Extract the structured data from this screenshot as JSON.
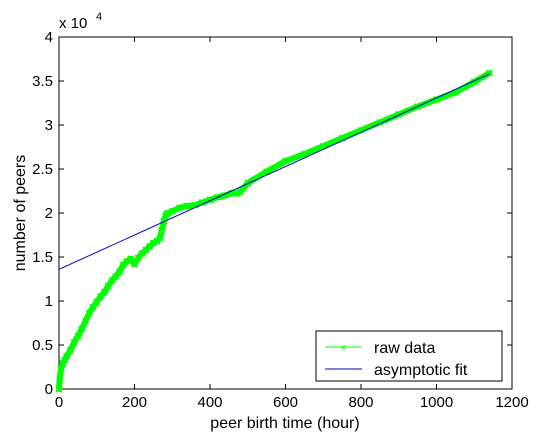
{
  "chart_data": {
    "type": "line",
    "xlabel": "peer birth time (hour)",
    "ylabel": "number of peers",
    "exponent_label": "x 10",
    "exponent_power": "4",
    "xlim": [
      0,
      1200
    ],
    "ylim": [
      0,
      40000
    ],
    "xticks": [
      0,
      200,
      400,
      600,
      800,
      1000,
      1200
    ],
    "yticks": [
      0,
      5000,
      10000,
      15000,
      20000,
      25000,
      30000,
      35000,
      40000
    ],
    "yticklabels": [
      "0",
      "0.5",
      "1",
      "1.5",
      "2",
      "2.5",
      "3",
      "3.5",
      "4"
    ],
    "grid": false,
    "legend_position": "bottom-right",
    "series": [
      {
        "name": "raw data",
        "color": "#00ff00",
        "marker": "x",
        "x": [
          0,
          2,
          5,
          10,
          15,
          20,
          30,
          40,
          50,
          60,
          70,
          80,
          90,
          100,
          110,
          120,
          130,
          140,
          150,
          160,
          170,
          180,
          190,
          200,
          210,
          220,
          230,
          240,
          250,
          260,
          268,
          272,
          278,
          282,
          286,
          290,
          300,
          320,
          340,
          360,
          380,
          400,
          420,
          440,
          460,
          470,
          480,
          500,
          550,
          600,
          650,
          700,
          750,
          800,
          850,
          900,
          950,
          1000,
          1050,
          1100,
          1140
        ],
        "y": [
          0,
          1200,
          2200,
          2900,
          3300,
          3700,
          4400,
          5300,
          6000,
          6800,
          7700,
          8600,
          9300,
          9900,
          10500,
          11000,
          11700,
          12300,
          12800,
          13300,
          14100,
          14500,
          14800,
          14200,
          14900,
          15400,
          15800,
          16200,
          16600,
          16800,
          17200,
          18000,
          19100,
          19700,
          19900,
          20000,
          20200,
          20600,
          20800,
          20900,
          21200,
          21500,
          21800,
          22000,
          22300,
          22200,
          22400,
          23400,
          24700,
          25900,
          26700,
          27600,
          28500,
          29400,
          30300,
          31200,
          32100,
          32900,
          33700,
          34900,
          35900
        ]
      },
      {
        "name": "asymptotic fit",
        "color": "#0000cc",
        "x": [
          0,
          1140
        ],
        "y": [
          13600,
          35800
        ]
      }
    ]
  }
}
